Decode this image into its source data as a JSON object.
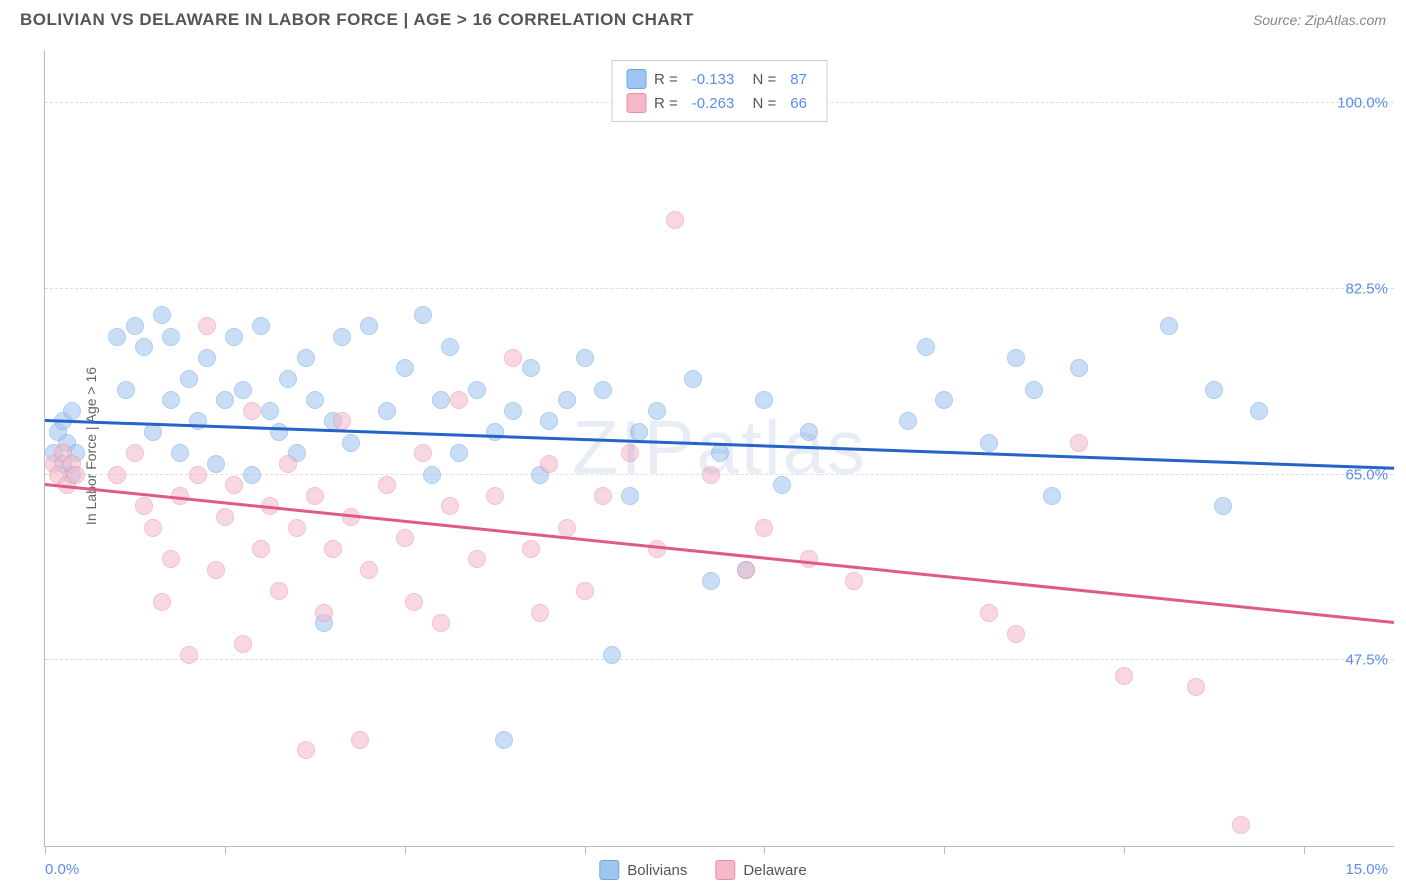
{
  "header": {
    "title": "BOLIVIAN VS DELAWARE IN LABOR FORCE | AGE > 16 CORRELATION CHART",
    "source": "Source: ZipAtlas.com"
  },
  "chart": {
    "type": "scatter",
    "y_axis_label": "In Labor Force | Age > 16",
    "watermark": "ZIPatlas",
    "xlim": [
      0,
      15
    ],
    "ylim": [
      30,
      105
    ],
    "x_ticks": [
      0,
      2,
      4,
      6,
      8,
      10,
      12,
      14
    ],
    "x_tick_labels": {
      "0": "0.0%",
      "15": "15.0%"
    },
    "y_gridlines": [
      47.5,
      65.0,
      82.5,
      100.0
    ],
    "y_tick_labels": [
      "47.5%",
      "65.0%",
      "82.5%",
      "100.0%"
    ],
    "background_color": "#ffffff",
    "grid_color": "#dddddd",
    "axis_color": "#bbbbbb",
    "tick_label_color": "#5b8def",
    "point_radius": 9,
    "point_opacity": 0.55,
    "series": [
      {
        "name": "Bolivians",
        "color": "#9ec4f0",
        "stroke": "#6fa6e0",
        "r_value": "-0.133",
        "n_value": "87",
        "trend": {
          "x1": 0,
          "y1": 70.0,
          "x2": 15,
          "y2": 65.5,
          "color": "#2563c9",
          "width": 2.5
        },
        "points": [
          [
            0.1,
            67
          ],
          [
            0.15,
            69
          ],
          [
            0.2,
            66
          ],
          [
            0.2,
            70
          ],
          [
            0.25,
            68
          ],
          [
            0.3,
            71
          ],
          [
            0.3,
            65
          ],
          [
            0.35,
            67
          ],
          [
            0.8,
            78
          ],
          [
            0.9,
            73
          ],
          [
            1.0,
            79
          ],
          [
            1.1,
            77
          ],
          [
            1.2,
            69
          ],
          [
            1.3,
            80
          ],
          [
            1.4,
            78
          ],
          [
            1.4,
            72
          ],
          [
            1.5,
            67
          ],
          [
            1.6,
            74
          ],
          [
            1.7,
            70
          ],
          [
            1.8,
            76
          ],
          [
            1.9,
            66
          ],
          [
            2.0,
            72
          ],
          [
            2.1,
            78
          ],
          [
            2.2,
            73
          ],
          [
            2.3,
            65
          ],
          [
            2.4,
            79
          ],
          [
            2.5,
            71
          ],
          [
            2.6,
            69
          ],
          [
            2.7,
            74
          ],
          [
            2.8,
            67
          ],
          [
            2.9,
            76
          ],
          [
            3.0,
            72
          ],
          [
            3.1,
            51
          ],
          [
            3.2,
            70
          ],
          [
            3.3,
            78
          ],
          [
            3.4,
            68
          ],
          [
            3.6,
            79
          ],
          [
            3.8,
            71
          ],
          [
            4.0,
            75
          ],
          [
            4.2,
            80
          ],
          [
            4.3,
            65
          ],
          [
            4.4,
            72
          ],
          [
            4.5,
            77
          ],
          [
            4.6,
            67
          ],
          [
            4.8,
            73
          ],
          [
            5.0,
            69
          ],
          [
            5.1,
            40
          ],
          [
            5.2,
            71
          ],
          [
            5.4,
            75
          ],
          [
            5.5,
            65
          ],
          [
            5.6,
            70
          ],
          [
            5.8,
            72
          ],
          [
            6.0,
            76
          ],
          [
            6.2,
            73
          ],
          [
            6.3,
            48
          ],
          [
            6.5,
            63
          ],
          [
            6.6,
            69
          ],
          [
            6.8,
            71
          ],
          [
            7.2,
            74
          ],
          [
            7.4,
            55
          ],
          [
            7.5,
            67
          ],
          [
            7.8,
            56
          ],
          [
            8.0,
            72
          ],
          [
            8.2,
            64
          ],
          [
            8.5,
            69
          ],
          [
            9.6,
            70
          ],
          [
            9.8,
            77
          ],
          [
            10.0,
            72
          ],
          [
            10.5,
            68
          ],
          [
            10.8,
            76
          ],
          [
            11.0,
            73
          ],
          [
            11.2,
            63
          ],
          [
            11.5,
            75
          ],
          [
            12.5,
            79
          ],
          [
            13.0,
            73
          ],
          [
            13.1,
            62
          ],
          [
            13.5,
            71
          ]
        ]
      },
      {
        "name": "Delaware",
        "color": "#f5b8c8",
        "stroke": "#e98fa8",
        "r_value": "-0.263",
        "n_value": "66",
        "trend": {
          "x1": 0,
          "y1": 64.0,
          "x2": 15,
          "y2": 51.0,
          "color": "#e05a89",
          "width": 2.5
        },
        "points": [
          [
            0.1,
            66
          ],
          [
            0.15,
            65
          ],
          [
            0.2,
            67
          ],
          [
            0.25,
            64
          ],
          [
            0.3,
            66
          ],
          [
            0.35,
            65
          ],
          [
            0.8,
            65
          ],
          [
            1.0,
            67
          ],
          [
            1.1,
            62
          ],
          [
            1.2,
            60
          ],
          [
            1.3,
            53
          ],
          [
            1.4,
            57
          ],
          [
            1.5,
            63
          ],
          [
            1.6,
            48
          ],
          [
            1.7,
            65
          ],
          [
            1.8,
            79
          ],
          [
            1.9,
            56
          ],
          [
            2.0,
            61
          ],
          [
            2.1,
            64
          ],
          [
            2.2,
            49
          ],
          [
            2.3,
            71
          ],
          [
            2.4,
            58
          ],
          [
            2.5,
            62
          ],
          [
            2.6,
            54
          ],
          [
            2.7,
            66
          ],
          [
            2.8,
            60
          ],
          [
            2.9,
            39
          ],
          [
            3.0,
            63
          ],
          [
            3.1,
            52
          ],
          [
            3.2,
            58
          ],
          [
            3.3,
            70
          ],
          [
            3.4,
            61
          ],
          [
            3.5,
            40
          ],
          [
            3.6,
            56
          ],
          [
            3.8,
            64
          ],
          [
            4.0,
            59
          ],
          [
            4.1,
            53
          ],
          [
            4.2,
            67
          ],
          [
            4.4,
            51
          ],
          [
            4.5,
            62
          ],
          [
            4.6,
            72
          ],
          [
            4.8,
            57
          ],
          [
            5.0,
            63
          ],
          [
            5.2,
            76
          ],
          [
            5.4,
            58
          ],
          [
            5.5,
            52
          ],
          [
            5.6,
            66
          ],
          [
            5.8,
            60
          ],
          [
            6.0,
            54
          ],
          [
            6.2,
            63
          ],
          [
            6.5,
            67
          ],
          [
            6.8,
            58
          ],
          [
            7.0,
            89
          ],
          [
            7.4,
            65
          ],
          [
            7.8,
            56
          ],
          [
            8.0,
            60
          ],
          [
            8.5,
            57
          ],
          [
            9.0,
            55
          ],
          [
            10.5,
            52
          ],
          [
            10.8,
            50
          ],
          [
            11.5,
            68
          ],
          [
            12.0,
            46
          ],
          [
            12.8,
            45
          ],
          [
            13.3,
            32
          ]
        ]
      }
    ]
  },
  "legend_bottom": [
    {
      "label": "Bolivians",
      "fill": "#9ec4f0",
      "stroke": "#6fa6e0"
    },
    {
      "label": "Delaware",
      "fill": "#f5b8c8",
      "stroke": "#e98fa8"
    }
  ]
}
